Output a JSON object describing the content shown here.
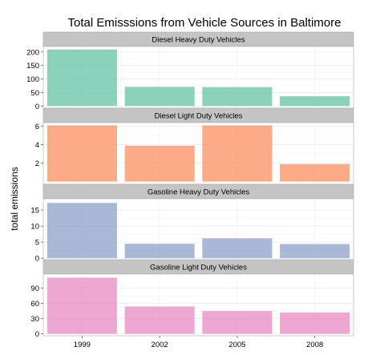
{
  "chart_data": {
    "type": "bar",
    "title": "Total Emisssions from Vehicle Sources in Baltimore",
    "xlabel": "",
    "ylabel": "total emissions",
    "categories": [
      "1999",
      "2002",
      "2005",
      "2008"
    ],
    "grid": true,
    "legend": "none",
    "panels": [
      {
        "name": "Diesel Heavy Duty Vehicles",
        "color": "#66C2A5",
        "values": [
          209,
          71,
          70,
          36
        ],
        "ylim": [
          -8,
          220
        ],
        "yticks": [
          0,
          50,
          100,
          150,
          200
        ],
        "yticklabels": [
          "0",
          "50",
          "100",
          "150",
          "200"
        ]
      },
      {
        "name": "Diesel Light Duty Vehicles",
        "color": "#FC8D62",
        "values": [
          6.1,
          3.9,
          6.1,
          1.9
        ],
        "ylim": [
          -0.3,
          6.4
        ],
        "yticks": [
          2,
          4,
          6
        ],
        "yticklabels": [
          "2",
          "4",
          "6"
        ]
      },
      {
        "name": "Gasoline Heavy Duty Vehicles",
        "color": "#8DA0CB",
        "values": [
          17.2,
          4.5,
          6.2,
          4.4
        ],
        "ylim": [
          -0.7,
          18.5
        ],
        "yticks": [
          0,
          5,
          10,
          15
        ],
        "yticklabels": [
          "0",
          "5",
          "10",
          "15"
        ]
      },
      {
        "name": "Gasoline Light Duty Vehicles",
        "color": "#E78AC3",
        "values": [
          111,
          54,
          45,
          42
        ],
        "ylim": [
          -4,
          118
        ],
        "yticks": [
          0,
          30,
          60,
          90
        ],
        "yticklabels": [
          "0",
          "30",
          "60",
          "90"
        ]
      }
    ]
  }
}
